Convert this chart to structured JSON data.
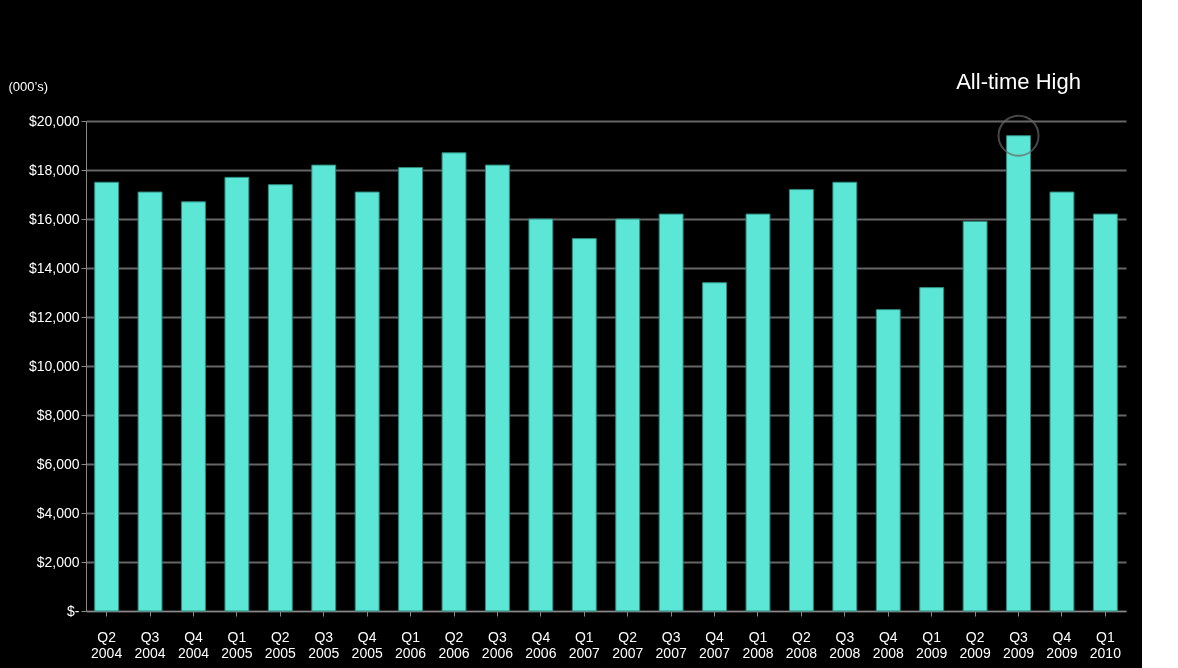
{
  "chart_data": {
    "type": "bar",
    "ylabel": "(000’s)",
    "categories": [
      "Q2 2004",
      "Q3 2004",
      "Q4 2004",
      "Q1 2005",
      "Q2 2005",
      "Q3 2005",
      "Q4 2005",
      "Q1 2006",
      "Q2 2006",
      "Q3 2006",
      "Q4 2006",
      "Q1 2007",
      "Q2 2007",
      "Q3 2007",
      "Q4 2007",
      "Q1 2008",
      "Q2 2008",
      "Q3 2008",
      "Q4 2008",
      "Q1 2009",
      "Q2 2009",
      "Q3 2009",
      "Q4 2009",
      "Q1 2010"
    ],
    "values": [
      17500,
      17100,
      16700,
      17700,
      17400,
      18200,
      17100,
      18100,
      18700,
      18200,
      16000,
      15200,
      16000,
      16200,
      13400,
      16200,
      17200,
      17500,
      12300,
      13200,
      15900,
      19400,
      17100,
      16200
    ],
    "color": "#5ce6d6",
    "ylim": [
      0,
      20000
    ],
    "yticks": [
      {
        "value": 0,
        "label": "$-"
      },
      {
        "value": 2000,
        "label": "$2,000"
      },
      {
        "value": 4000,
        "label": "$4,000"
      },
      {
        "value": 6000,
        "label": "$6,000"
      },
      {
        "value": 8000,
        "label": "$8,000"
      },
      {
        "value": 10000,
        "label": "$10,000"
      },
      {
        "value": 12000,
        "label": "$12,000"
      },
      {
        "value": 14000,
        "label": "$14,000"
      },
      {
        "value": 16000,
        "label": "$16,000"
      },
      {
        "value": 18000,
        "label": "$18,000"
      },
      {
        "value": 20000,
        "label": "$20,000"
      }
    ],
    "grid": "y",
    "annotations": [
      {
        "text": "All-time High",
        "x": "Q3 2009",
        "y": 19400
      }
    ]
  }
}
